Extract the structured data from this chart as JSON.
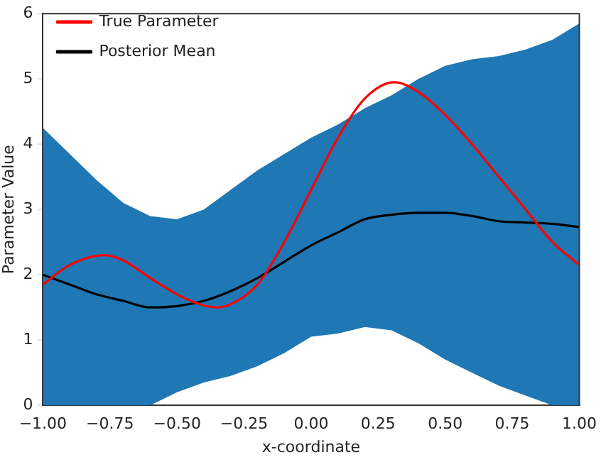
{
  "chart_data": {
    "type": "line",
    "xlabel": "x-coordinate",
    "ylabel": "Parameter Value",
    "x": [
      -1,
      -0.9,
      -0.8,
      -0.7,
      -0.6,
      -0.5,
      -0.4,
      -0.3,
      -0.2,
      -0.1,
      0,
      0.1,
      0.2,
      0.3,
      0.4,
      0.5,
      0.6,
      0.7,
      0.8,
      0.9,
      1
    ],
    "series": [
      {
        "name": "True Parameter",
        "color": "#ff0000",
        "x": [
          -1,
          -0.9,
          -0.77,
          -0.7,
          -0.6,
          -0.5,
          -0.4,
          -0.35,
          -0.3,
          -0.2,
          -0.1,
          0,
          0.1,
          0.2,
          0.31,
          0.4,
          0.5,
          0.6,
          0.7,
          0.8,
          0.9,
          1
        ],
        "values": [
          1.85,
          2.15,
          2.3,
          2.22,
          1.95,
          1.7,
          1.53,
          1.5,
          1.55,
          1.85,
          2.5,
          3.3,
          4.1,
          4.7,
          4.95,
          4.8,
          4.45,
          4.0,
          3.5,
          3.0,
          2.5,
          2.15
        ]
      },
      {
        "name": "Posterior Mean",
        "color": "#000000",
        "values": [
          2.0,
          1.85,
          1.7,
          1.6,
          1.5,
          1.52,
          1.6,
          1.75,
          1.95,
          2.2,
          2.45,
          2.65,
          2.85,
          2.92,
          2.95,
          2.95,
          2.9,
          2.82,
          2.8,
          2.78,
          2.73
        ],
        "lower": [
          0,
          0,
          0,
          0,
          0,
          0.2,
          0.35,
          0.45,
          0.6,
          0.8,
          1.05,
          1.1,
          1.2,
          1.15,
          0.95,
          0.7,
          0.5,
          0.3,
          0.15,
          0,
          0
        ],
        "upper": [
          4.25,
          3.85,
          3.45,
          3.1,
          2.9,
          2.85,
          3.0,
          3.3,
          3.6,
          3.85,
          4.1,
          4.3,
          4.55,
          4.75,
          5.0,
          5.2,
          5.3,
          5.35,
          5.45,
          5.6,
          5.85
        ]
      }
    ],
    "xlim": [
      -1,
      1
    ],
    "xticks": [
      {
        "value": -1,
        "label": "−1.00"
      },
      {
        "value": -0.75,
        "label": "−0.75"
      },
      {
        "value": -0.5,
        "label": "−0.50"
      },
      {
        "value": -0.25,
        "label": "−0.25"
      },
      {
        "value": 0,
        "label": "0.00"
      },
      {
        "value": 0.25,
        "label": "0.25"
      },
      {
        "value": 0.5,
        "label": "0.50"
      },
      {
        "value": 0.75,
        "label": "0.75"
      },
      {
        "value": 1,
        "label": "1.00"
      }
    ],
    "ylim": [
      0,
      6
    ],
    "yticks": [
      0,
      1,
      2,
      3,
      4,
      5,
      6
    ],
    "grid": false,
    "legend": "top left"
  }
}
